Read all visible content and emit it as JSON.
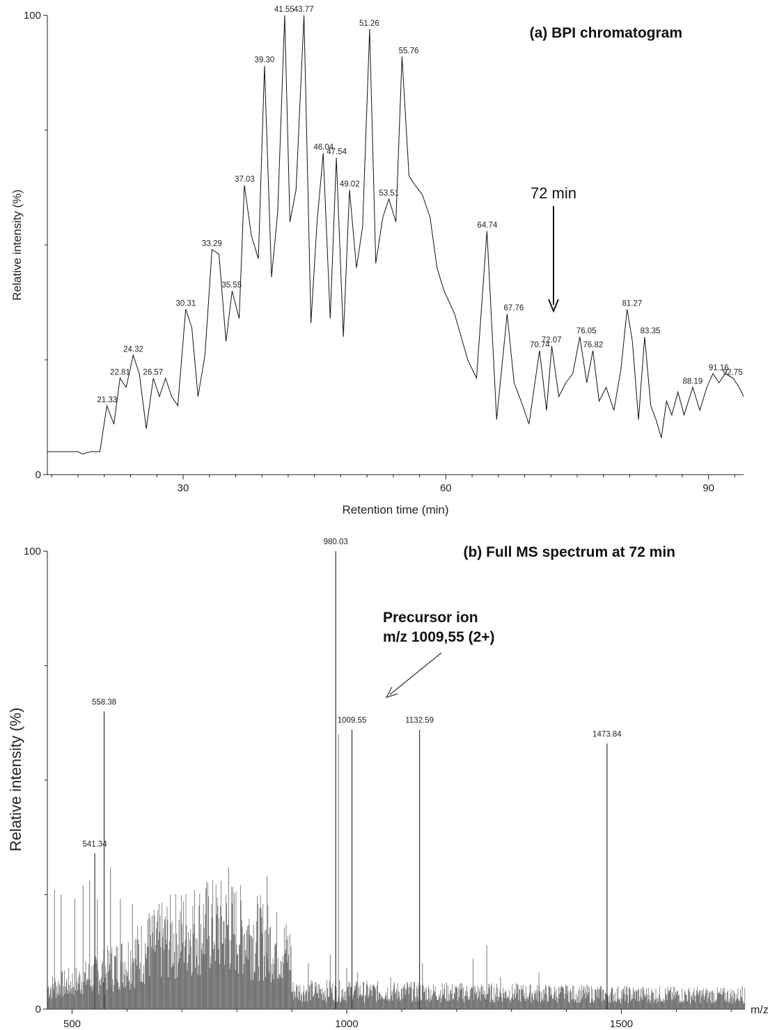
{
  "chart_data": [
    {
      "type": "line",
      "title": "(a) BPI chromatogram",
      "xlabel": "Retention time (min)",
      "ylabel": "Relative intensity (%)",
      "xlim": [
        14.5,
        94
      ],
      "ylim": [
        0,
        100
      ],
      "x_ticks": [
        30,
        60,
        90
      ],
      "y_ticks": [
        0,
        100
      ],
      "annotation": {
        "text": "72 min",
        "x": 72.5,
        "y": 35
      },
      "series": [
        {
          "x": [
            14.5,
            18,
            18.5,
            19.5,
            20.5,
            21.3,
            22.1,
            22.8,
            23.5,
            24.3,
            25.0,
            25.8,
            26.6,
            27.3,
            28.0,
            28.7,
            29.4,
            30.3,
            31.0,
            31.7,
            32.5,
            33.3,
            34.1,
            34.9,
            35.6,
            36.4,
            37.0,
            37.8,
            38.6,
            39.3,
            40.1,
            40.8,
            41.6,
            42.2,
            42.9,
            43.8,
            44.6,
            45.3,
            46.0,
            46.8,
            47.5,
            48.3,
            49.0,
            49.8,
            50.5,
            51.3,
            52.0,
            52.8,
            53.5,
            54.3,
            55.0,
            55.8,
            56.5,
            57.3,
            58.2,
            59.0,
            59.8,
            61.0,
            62.5,
            63.5,
            64.7,
            65.8,
            67.0,
            67.8,
            68.6,
            69.5,
            70.7,
            71.5,
            72.1,
            72.9,
            73.7,
            74.5,
            75.3,
            76.1,
            76.8,
            77.5,
            78.3,
            79.2,
            80.0,
            80.7,
            81.3,
            82.0,
            82.7,
            83.4,
            84.0,
            84.6,
            85.2,
            85.8,
            86.5,
            87.2,
            88.2,
            89.0,
            89.8,
            90.5,
            91.2,
            91.9,
            92.8,
            93.5,
            94.0
          ],
          "y": [
            5,
            5,
            4.5,
            5,
            5,
            15,
            11,
            21,
            19,
            26,
            22,
            10,
            21,
            17,
            21,
            17,
            15,
            36,
            32,
            17,
            26,
            49,
            48,
            29,
            40,
            34,
            63,
            52,
            47,
            89,
            43,
            57,
            100,
            55,
            62,
            100,
            33,
            55,
            70,
            34,
            69,
            30,
            62,
            45,
            54,
            97,
            46,
            56,
            60,
            55,
            91,
            65,
            63,
            61,
            56,
            45,
            40,
            35,
            25,
            21,
            53,
            12,
            35,
            20,
            16,
            11,
            27,
            14,
            28,
            17,
            20,
            22,
            30,
            20,
            27,
            16,
            19,
            14,
            23,
            36,
            29,
            12,
            30,
            15,
            12,
            8,
            16,
            13,
            18,
            13,
            19,
            14,
            19,
            22,
            20,
            22,
            21,
            19,
            17
          ]
        }
      ],
      "peak_labels": [
        {
          "x": 21.33,
          "y": 15,
          "text": "21.33"
        },
        {
          "x": 22.81,
          "y": 21,
          "text": "22.81"
        },
        {
          "x": 24.32,
          "y": 26,
          "text": "24.32"
        },
        {
          "x": 26.57,
          "y": 21,
          "text": "26.57"
        },
        {
          "x": 30.31,
          "y": 36,
          "text": "30.31"
        },
        {
          "x": 33.29,
          "y": 49,
          "text": "33.29"
        },
        {
          "x": 35.55,
          "y": 40,
          "text": "35.55"
        },
        {
          "x": 37.03,
          "y": 63,
          "text": "37.03"
        },
        {
          "x": 39.3,
          "y": 89,
          "text": "39.30"
        },
        {
          "x": 41.55,
          "y": 100,
          "text": "41.55"
        },
        {
          "x": 43.77,
          "y": 100,
          "text": "43.77"
        },
        {
          "x": 46.04,
          "y": 70,
          "text": "46.04"
        },
        {
          "x": 47.54,
          "y": 69,
          "text": "47.54"
        },
        {
          "x": 49.02,
          "y": 62,
          "text": "49.02"
        },
        {
          "x": 51.26,
          "y": 97,
          "text": "51.26"
        },
        {
          "x": 53.51,
          "y": 60,
          "text": "53.51"
        },
        {
          "x": 55.76,
          "y": 91,
          "text": "55.76"
        },
        {
          "x": 64.74,
          "y": 53,
          "text": "64.74"
        },
        {
          "x": 67.76,
          "y": 35,
          "text": "67.76"
        },
        {
          "x": 70.74,
          "y": 27,
          "text": "70.74"
        },
        {
          "x": 72.07,
          "y": 28,
          "text": "72.07"
        },
        {
          "x": 76.05,
          "y": 30,
          "text": "76.05"
        },
        {
          "x": 76.82,
          "y": 27,
          "text": "76.82"
        },
        {
          "x": 81.27,
          "y": 36,
          "text": "81.27"
        },
        {
          "x": 83.35,
          "y": 30,
          "text": "83.35"
        },
        {
          "x": 88.19,
          "y": 19,
          "text": "88.19"
        },
        {
          "x": 91.16,
          "y": 22,
          "text": "91.16"
        },
        {
          "x": 92.75,
          "y": 21,
          "text": "92.75"
        }
      ]
    },
    {
      "type": "bar",
      "title": "(b) Full MS spectrum at 72 min",
      "xlabel": "m/z",
      "ylabel": "Relative intensity (%)",
      "xlim": [
        455,
        1725
      ],
      "ylim": [
        0,
        100
      ],
      "x_ticks": [
        500,
        1000,
        1500
      ],
      "y_ticks": [
        0,
        100
      ],
      "annotation": {
        "line1": "Precursor ion",
        "line2": "m/z 1009,55 (2+)"
      },
      "peaks": [
        {
          "x": 541.34,
          "y": 34,
          "text": "541.34"
        },
        {
          "x": 558.38,
          "y": 65,
          "text": "558.38"
        },
        {
          "x": 980.03,
          "y": 100,
          "text": "980.03"
        },
        {
          "x": 1009.55,
          "y": 61,
          "text": "1009.55"
        },
        {
          "x": 1132.59,
          "y": 61,
          "text": "1132.59"
        },
        {
          "x": 1473.84,
          "y": 58,
          "text": "1473.84"
        }
      ],
      "minor_peaks": [
        {
          "x": 468,
          "y": 26
        },
        {
          "x": 480,
          "y": 25
        },
        {
          "x": 505,
          "y": 24
        },
        {
          "x": 520,
          "y": 27
        },
        {
          "x": 532,
          "y": 28
        },
        {
          "x": 546,
          "y": 24
        },
        {
          "x": 570,
          "y": 31
        },
        {
          "x": 588,
          "y": 24
        },
        {
          "x": 610,
          "y": 23
        },
        {
          "x": 640,
          "y": 21
        },
        {
          "x": 670,
          "y": 19
        },
        {
          "x": 700,
          "y": 18
        },
        {
          "x": 740,
          "y": 17
        },
        {
          "x": 785,
          "y": 31
        },
        {
          "x": 825,
          "y": 16
        },
        {
          "x": 855,
          "y": 29
        },
        {
          "x": 890,
          "y": 12
        },
        {
          "x": 930,
          "y": 10
        },
        {
          "x": 970,
          "y": 12
        },
        {
          "x": 985,
          "y": 60
        },
        {
          "x": 1000,
          "y": 9
        },
        {
          "x": 1020,
          "y": 8
        },
        {
          "x": 1080,
          "y": 7
        },
        {
          "x": 1110,
          "y": 6
        },
        {
          "x": 1138,
          "y": 10
        },
        {
          "x": 1230,
          "y": 11
        },
        {
          "x": 1255,
          "y": 14
        },
        {
          "x": 1280,
          "y": 7
        },
        {
          "x": 1350,
          "y": 8
        },
        {
          "x": 1400,
          "y": 5
        },
        {
          "x": 1540,
          "y": 4
        },
        {
          "x": 1600,
          "y": 3
        },
        {
          "x": 1680,
          "y": 3
        },
        {
          "x": 1720,
          "y": 5
        }
      ]
    }
  ]
}
